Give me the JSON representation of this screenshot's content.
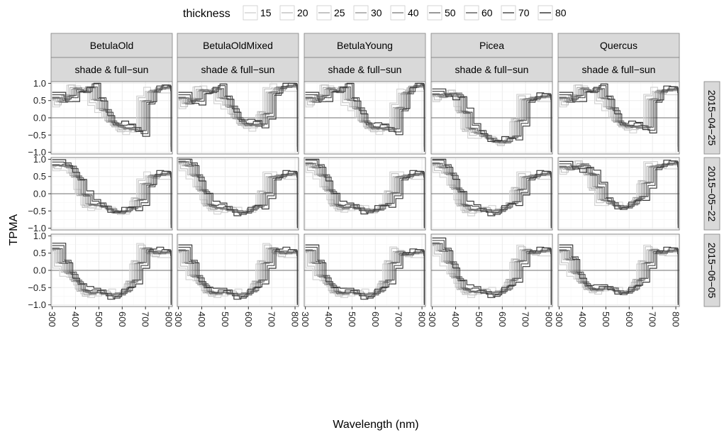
{
  "chart_data": {
    "type": "line",
    "facets": {
      "columns": [
        "BetulaOld",
        "BetulaOldMixed",
        "BetulaYoung",
        "Picea",
        "Quercus"
      ],
      "column_sublabel": "shade & full−sun",
      "rows": [
        "2015−04−25",
        "2015−05−22",
        "2015−06−05"
      ]
    },
    "xlabel": "Wavelength (nm)",
    "ylabel": "TPMA",
    "xlim": [
      295,
      815
    ],
    "ylim": [
      -1.05,
      1.05
    ],
    "x_ticks": [
      300,
      400,
      500,
      600,
      700,
      800
    ],
    "x_tick_labels": [
      "300",
      "400",
      "500",
      "600",
      "700",
      "800"
    ],
    "y_ticks": [
      -1.0,
      -0.5,
      0.0,
      0.5,
      1.0
    ],
    "y_tick_labels": [
      "−1.0",
      "−0.5",
      "0.0",
      "0.5",
      "1.0"
    ],
    "grid": true,
    "reference_line_y": 0,
    "legend": {
      "title": "thickness",
      "position": "top",
      "entries": [
        "15",
        "20",
        "25",
        "30",
        "40",
        "50",
        "60",
        "70",
        "80"
      ],
      "colors": [
        "#d4d4d4",
        "#c2c2c2",
        "#b0b0b0",
        "#9e9e9e",
        "#8a8a8a",
        "#767676",
        "#626262",
        "#4e4e4e",
        "#383838"
      ]
    },
    "series_x": [
      300,
      330,
      360,
      390,
      420,
      450,
      480,
      510,
      540,
      570,
      600,
      630,
      660,
      690,
      720,
      750,
      780,
      810
    ],
    "panels": [
      [
        {
          "values": [
            0.6,
            0.45,
            0.6,
            0.85,
            0.8,
            0.9,
            0.5,
            0.2,
            -0.1,
            -0.2,
            -0.3,
            -0.35,
            -0.4,
            0.5,
            0.8,
            0.85,
            0.85,
            -0.85
          ]
        },
        {
          "values": [
            0.6,
            0.4,
            0.5,
            0.8,
            0.8,
            0.85,
            0.55,
            0.3,
            0.0,
            -0.15,
            -0.2,
            -0.25,
            0.1,
            0.75,
            0.9,
            0.9,
            0.9,
            -0.85
          ]
        },
        {
          "values": [
            0.6,
            0.45,
            0.6,
            0.85,
            0.8,
            0.9,
            0.5,
            0.25,
            -0.1,
            -0.25,
            -0.3,
            -0.35,
            -0.35,
            0.3,
            0.75,
            0.9,
            0.9,
            -0.85
          ]
        },
        {
          "values": [
            0.7,
            0.6,
            0.65,
            0.7,
            0.2,
            -0.3,
            -0.45,
            -0.55,
            -0.6,
            -0.65,
            -0.7,
            -0.6,
            -0.1,
            0.55,
            0.6,
            0.6,
            0.6,
            -0.9
          ]
        },
        {
          "values": [
            0.6,
            0.45,
            0.6,
            0.85,
            0.8,
            0.85,
            0.55,
            0.25,
            -0.1,
            -0.2,
            -0.25,
            -0.3,
            -0.3,
            0.55,
            0.8,
            0.8,
            0.8,
            -0.85
          ]
        }
      ],
      [
        {
          "values": [
            0.85,
            0.8,
            0.75,
            0.5,
            0.0,
            -0.3,
            -0.35,
            -0.4,
            -0.45,
            -0.5,
            -0.5,
            -0.45,
            -0.2,
            0.3,
            0.55,
            0.55,
            0.55,
            -0.9
          ]
        },
        {
          "values": [
            0.95,
            0.8,
            0.5,
            0.1,
            -0.3,
            -0.4,
            -0.45,
            -0.5,
            -0.5,
            -0.5,
            -0.45,
            -0.4,
            0.0,
            0.5,
            0.55,
            0.55,
            0.55,
            -0.9
          ]
        },
        {
          "values": [
            0.9,
            0.75,
            0.5,
            0.1,
            -0.3,
            -0.4,
            -0.4,
            -0.45,
            -0.45,
            -0.45,
            -0.45,
            -0.35,
            0.0,
            0.5,
            0.55,
            0.55,
            0.55,
            -0.95
          ]
        },
        {
          "values": [
            0.9,
            0.75,
            0.55,
            0.15,
            -0.3,
            -0.45,
            -0.5,
            -0.5,
            -0.5,
            -0.45,
            -0.4,
            -0.3,
            0.1,
            0.5,
            0.55,
            0.55,
            0.55,
            -0.95
          ]
        },
        {
          "values": [
            0.8,
            0.7,
            0.75,
            0.85,
            0.6,
            0.2,
            -0.2,
            -0.3,
            -0.35,
            -0.35,
            -0.3,
            -0.15,
            0.3,
            0.8,
            0.85,
            0.85,
            0.85,
            -0.9
          ]
        }
      ],
      [
        {
          "values": [
            0.65,
            0.2,
            -0.1,
            -0.3,
            -0.55,
            -0.65,
            -0.65,
            -0.7,
            -0.7,
            -0.65,
            -0.6,
            -0.35,
            0.2,
            0.65,
            0.55,
            0.5,
            0.5,
            -0.95
          ]
        },
        {
          "values": [
            0.6,
            0.2,
            -0.2,
            -0.4,
            -0.6,
            -0.65,
            -0.65,
            -0.7,
            -0.7,
            -0.65,
            -0.6,
            -0.35,
            0.2,
            0.65,
            0.55,
            0.5,
            0.5,
            -0.95
          ]
        },
        {
          "values": [
            0.6,
            0.2,
            -0.2,
            -0.4,
            -0.6,
            -0.65,
            -0.65,
            -0.7,
            -0.7,
            -0.65,
            -0.6,
            -0.35,
            0.2,
            0.55,
            0.5,
            0.5,
            0.5,
            -0.95
          ]
        },
        {
          "values": [
            0.8,
            0.55,
            0.2,
            -0.2,
            -0.5,
            -0.6,
            -0.65,
            -0.65,
            -0.65,
            -0.6,
            -0.55,
            -0.3,
            0.25,
            0.6,
            0.55,
            0.55,
            0.55,
            -0.95
          ]
        },
        {
          "values": [
            0.6,
            0.3,
            -0.1,
            -0.35,
            -0.5,
            -0.55,
            -0.55,
            -0.55,
            -0.6,
            -0.6,
            -0.55,
            -0.3,
            0.2,
            0.6,
            0.55,
            0.55,
            0.55,
            -0.95
          ]
        }
      ]
    ]
  }
}
